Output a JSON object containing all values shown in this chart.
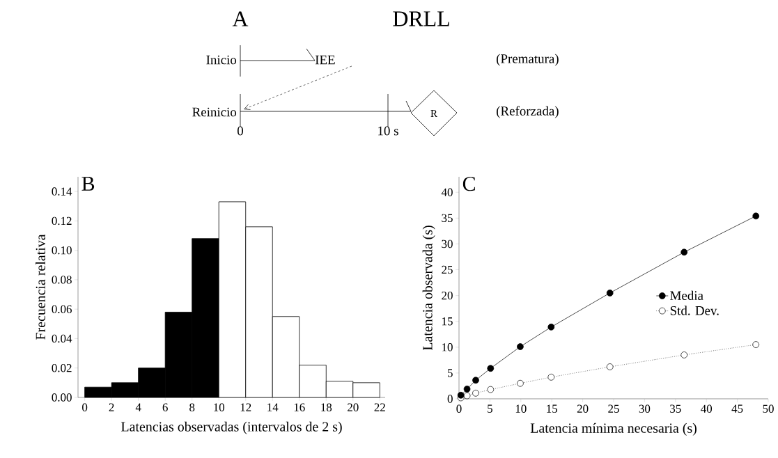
{
  "chart_data": [
    {
      "type": "other",
      "title": "DRLL",
      "annotations": [
        "A",
        "Inicio",
        "IEE",
        "(Prematura)",
        "Reinicio",
        "0",
        "10 s",
        "R",
        "(Reforzada)"
      ]
    },
    {
      "type": "histogram",
      "xlabel": "Latencias observadas (intervalos de 2 s)",
      "ylabel": "Frecuencia relativa",
      "annotations": [
        "B"
      ],
      "bins": [
        0,
        2,
        4,
        6,
        8,
        10,
        12,
        14,
        16,
        18,
        20,
        22
      ],
      "values": [
        0.007,
        0.01,
        0.02,
        0.058,
        0.108,
        0.133,
        0.116,
        0.055,
        0.022,
        0.011,
        0.01
      ],
      "colors": [
        "#000000",
        "#000000",
        "#000000",
        "#000000",
        "#000000",
        "#ffffff",
        "#ffffff",
        "#ffffff",
        "#ffffff",
        "#ffffff",
        "#ffffff"
      ],
      "xlim": [
        -0.5,
        22.4
      ],
      "ylim": [
        0,
        0.15
      ],
      "xticks": [
        0,
        2,
        4,
        6,
        8,
        10,
        12,
        14,
        16,
        18,
        20,
        22
      ],
      "yticks": [
        {
          "value": 0,
          "label": "0.00"
        },
        {
          "value": 0.02,
          "label": "0.02"
        },
        {
          "value": 0.04,
          "label": "0.04"
        },
        {
          "value": 0.06,
          "label": "0.06"
        },
        {
          "value": 0.08,
          "label": "0.08"
        },
        {
          "value": 0.1,
          "label": "0.10"
        },
        {
          "value": 0.12,
          "label": "0.12"
        },
        {
          "value": 0.14,
          "label": "0.14"
        }
      ]
    },
    {
      "type": "line",
      "xlabel": "Latencia mínima necesaria (s)",
      "ylabel": "Latencia observada (s)",
      "annotations": [
        "C"
      ],
      "x": [
        0.3,
        1.3,
        2.7,
        5.1,
        9.9,
        14.9,
        24.4,
        36.4,
        48.0
      ],
      "series": [
        {
          "name": "Media",
          "color": "#000000",
          "line_style": "solid",
          "values": [
            0.7,
            1.9,
            3.6,
            5.9,
            10.1,
            13.9,
            20.5,
            28.4,
            35.4
          ]
        },
        {
          "name": "Std. Dev.",
          "color": "#ffffff",
          "line_style": "dotted",
          "values": [
            0.2,
            0.6,
            1.1,
            1.8,
            3.0,
            4.2,
            6.2,
            8.5,
            10.5
          ]
        }
      ],
      "marker": "circle",
      "legend": "right",
      "xlim": [
        0,
        50
      ],
      "ylim": [
        0,
        43
      ],
      "xticks": [
        0,
        5,
        10,
        15,
        20,
        25,
        30,
        35,
        40,
        45,
        50
      ],
      "yticks": [
        0,
        5,
        10,
        15,
        20,
        25,
        30,
        35,
        40
      ]
    }
  ]
}
